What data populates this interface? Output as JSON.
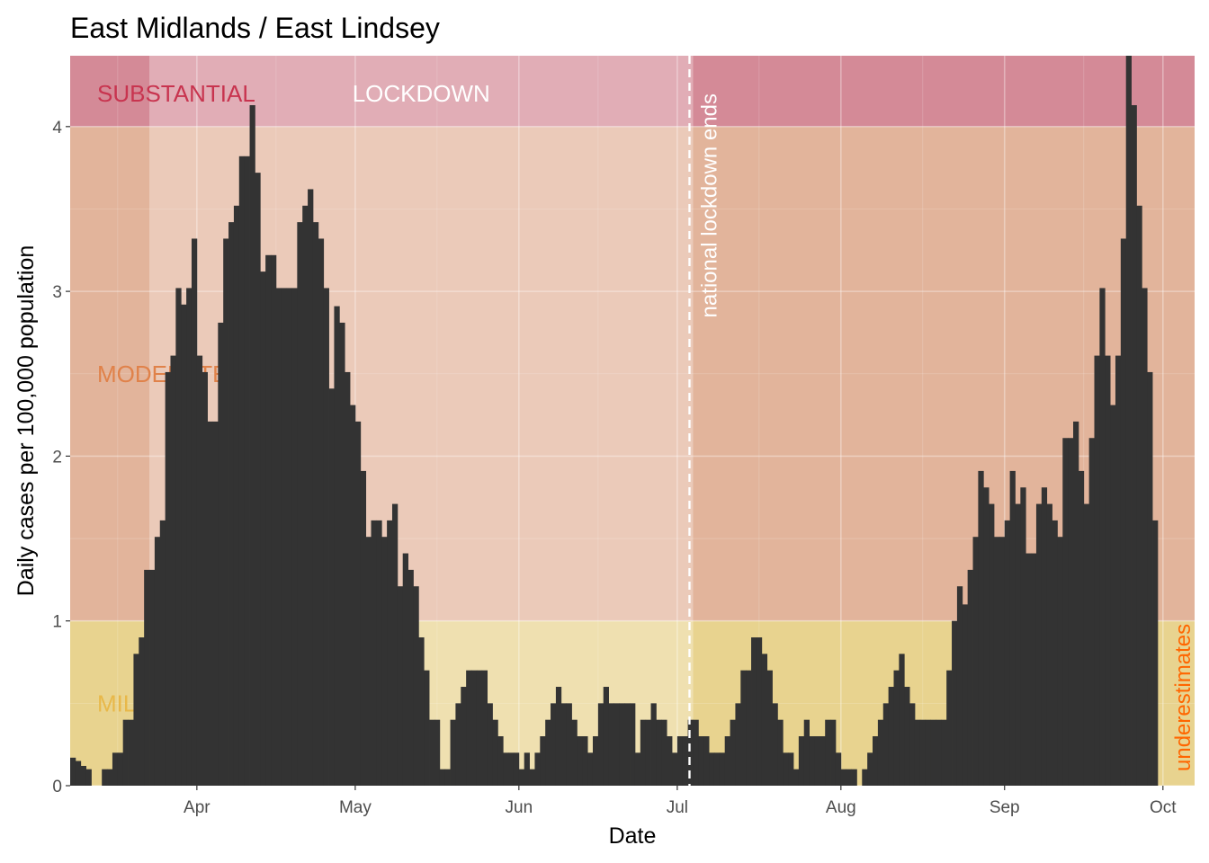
{
  "chart_data": {
    "type": "bar",
    "title": "East Midlands / East Lindsey",
    "xlabel": "Date",
    "ylabel": "Daily cases per 100,000 population",
    "xlim": [
      "2020-03-08",
      "2020-10-07"
    ],
    "ylim": [
      0,
      4.43
    ],
    "x_ticks": [
      {
        "date": "2020-04-01",
        "label": "Apr"
      },
      {
        "date": "2020-05-01",
        "label": "May"
      },
      {
        "date": "2020-06-01",
        "label": "Jun"
      },
      {
        "date": "2020-07-01",
        "label": "Jul"
      },
      {
        "date": "2020-08-01",
        "label": "Aug"
      },
      {
        "date": "2020-09-01",
        "label": "Sep"
      },
      {
        "date": "2020-10-01",
        "label": "Oct"
      }
    ],
    "y_ticks": [
      0,
      1,
      2,
      3,
      4
    ],
    "grid": true,
    "zones": [
      {
        "label": "MILD",
        "from": 0,
        "to": 1,
        "color": "#e8d38f",
        "label_color": "#e8b84a"
      },
      {
        "label": "MODERATE",
        "from": 1,
        "to": 4,
        "color": "#e2b49b",
        "label_color": "#e0824a"
      },
      {
        "label": "SUBSTANTIAL",
        "from": 4,
        "to": 4.43,
        "color": "#d48a97",
        "label_color": "#c8344f"
      }
    ],
    "lockdown": {
      "label": "LOCKDOWN",
      "start": "2020-03-23",
      "end": "2020-07-04",
      "shade": "#ffffff",
      "label_color": "#ffffff"
    },
    "annotations": {
      "lockdown_end_label": "national lockdown ends",
      "lockdown_end_date": "2020-07-04",
      "underestimates_label": "underestimates",
      "underestimates_color": "#ff6600"
    },
    "bar_color": "#333333",
    "start_date": "2020-03-08",
    "values": [
      0.17,
      0.15,
      0.12,
      0.1,
      0,
      0,
      0.1,
      0.1,
      0.2,
      0.2,
      0.4,
      0.4,
      0.8,
      0.9,
      1.31,
      1.31,
      1.51,
      1.61,
      2.51,
      2.61,
      3.02,
      2.92,
      3.02,
      3.32,
      2.61,
      2.51,
      2.21,
      2.21,
      2.81,
      3.32,
      3.42,
      3.52,
      3.82,
      3.82,
      4.13,
      3.72,
      3.12,
      3.22,
      3.22,
      3.02,
      3.02,
      3.02,
      3.02,
      3.42,
      3.52,
      3.62,
      3.42,
      3.32,
      3.02,
      2.41,
      2.91,
      2.81,
      2.51,
      2.31,
      2.21,
      1.91,
      1.51,
      1.61,
      1.61,
      1.51,
      1.61,
      1.71,
      1.21,
      1.41,
      1.31,
      1.21,
      0.9,
      0.7,
      0.4,
      0.4,
      0.1,
      0.1,
      0.4,
      0.5,
      0.6,
      0.7,
      0.7,
      0.7,
      0.7,
      0.5,
      0.4,
      0.3,
      0.2,
      0.2,
      0.2,
      0.1,
      0.2,
      0.1,
      0.2,
      0.3,
      0.4,
      0.5,
      0.6,
      0.5,
      0.5,
      0.4,
      0.3,
      0.3,
      0.2,
      0.3,
      0.5,
      0.6,
      0.5,
      0.5,
      0.5,
      0.5,
      0.5,
      0.2,
      0.4,
      0.4,
      0.5,
      0.4,
      0.4,
      0.3,
      0.2,
      0.3,
      0.3,
      0.4,
      0.4,
      0.3,
      0.3,
      0.2,
      0.2,
      0.2,
      0.3,
      0.4,
      0.5,
      0.7,
      0.7,
      0.9,
      0.9,
      0.8,
      0.7,
      0.5,
      0.4,
      0.2,
      0.2,
      0.1,
      0.3,
      0.4,
      0.3,
      0.3,
      0.3,
      0.4,
      0.4,
      0.2,
      0.1,
      0.1,
      0.1,
      0,
      0.1,
      0.2,
      0.3,
      0.4,
      0.5,
      0.6,
      0.7,
      0.8,
      0.6,
      0.5,
      0.4,
      0.4,
      0.4,
      0.4,
      0.4,
      0.4,
      0.7,
      1.0,
      1.21,
      1.1,
      1.31,
      1.51,
      1.91,
      1.81,
      1.71,
      1.51,
      1.51,
      1.61,
      1.91,
      1.71,
      1.81,
      1.41,
      1.41,
      1.71,
      1.81,
      1.71,
      1.61,
      1.51,
      2.11,
      2.11,
      2.21,
      1.91,
      1.71,
      2.11,
      2.61,
      3.02,
      2.61,
      2.31,
      2.61,
      3.32,
      4.43,
      4.13,
      3.52,
      3.02,
      2.51,
      1.61
    ]
  }
}
